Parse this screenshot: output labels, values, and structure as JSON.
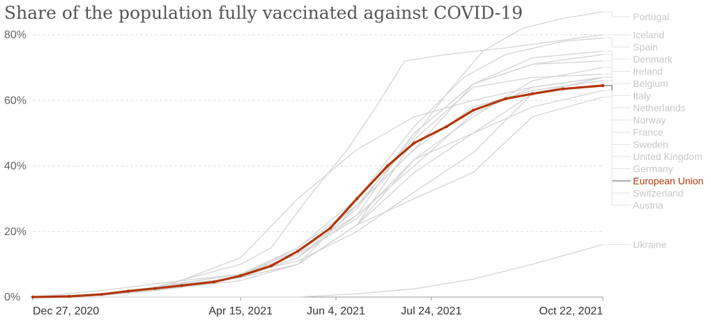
{
  "chart_data": {
    "type": "line",
    "title": "Share of the population fully vaccinated against COVID-19",
    "xlabel": "",
    "ylabel": "",
    "y_unit": "%",
    "ylim": [
      0,
      80
    ],
    "y_ticks": [
      {
        "value": 0,
        "label": "0%"
      },
      {
        "value": 20,
        "label": "20%"
      },
      {
        "value": 40,
        "label": "40%"
      },
      {
        "value": 60,
        "label": "60%"
      },
      {
        "value": 80,
        "label": "80%"
      }
    ],
    "x_range": [
      "2020-12-27",
      "2021-10-22"
    ],
    "x_ticks": [
      {
        "value": "2020-12-27",
        "label": "Dec 27, 2020"
      },
      {
        "value": "2021-04-15",
        "label": "Apr 15, 2021"
      },
      {
        "value": "2021-06-04",
        "label": "Jun 4, 2021"
      },
      {
        "value": "2021-07-24",
        "label": "Jul 24, 2021"
      },
      {
        "value": "2021-10-22",
        "label": "Oct 22, 2021"
      }
    ],
    "grid": true,
    "legend_placement": "right, labels at line ends",
    "colors": {
      "highlight": "#b13507",
      "background_series": "#d3d3d3",
      "gridline": "#dddddd"
    },
    "highlighted_series": "European Union",
    "series": [
      {
        "name": "Portugal",
        "points": [
          [
            "2020-12-27",
            0
          ],
          [
            "2021-02-01",
            0.5
          ],
          [
            "2021-03-01",
            2
          ],
          [
            "2021-04-15",
            6
          ],
          [
            "2021-05-15",
            15
          ],
          [
            "2021-06-15",
            28
          ],
          [
            "2021-07-10",
            45
          ],
          [
            "2021-08-01",
            62
          ],
          [
            "2021-08-20",
            75
          ],
          [
            "2021-09-10",
            82
          ],
          [
            "2021-10-01",
            85
          ],
          [
            "2021-10-22",
            87
          ]
        ]
      },
      {
        "name": "Iceland",
        "points": [
          [
            "2020-12-27",
            0
          ],
          [
            "2021-02-01",
            1
          ],
          [
            "2021-03-01",
            3
          ],
          [
            "2021-04-15",
            10
          ],
          [
            "2021-05-01",
            15
          ],
          [
            "2021-05-20",
            30
          ],
          [
            "2021-06-10",
            45
          ],
          [
            "2021-06-25",
            58
          ],
          [
            "2021-07-10",
            72
          ],
          [
            "2021-08-01",
            74
          ],
          [
            "2021-09-01",
            76
          ],
          [
            "2021-10-22",
            80
          ]
        ]
      },
      {
        "name": "Spain",
        "points": [
          [
            "2020-12-27",
            0
          ],
          [
            "2021-02-01",
            1
          ],
          [
            "2021-03-01",
            3
          ],
          [
            "2021-04-15",
            7
          ],
          [
            "2021-05-15",
            15
          ],
          [
            "2021-06-15",
            30
          ],
          [
            "2021-07-15",
            52
          ],
          [
            "2021-08-10",
            67
          ],
          [
            "2021-09-01",
            74
          ],
          [
            "2021-10-01",
            78
          ],
          [
            "2021-10-22",
            79
          ]
        ]
      },
      {
        "name": "Denmark",
        "points": [
          [
            "2020-12-27",
            0
          ],
          [
            "2021-02-01",
            1
          ],
          [
            "2021-03-01",
            3
          ],
          [
            "2021-04-15",
            7
          ],
          [
            "2021-05-15",
            13
          ],
          [
            "2021-06-15",
            28
          ],
          [
            "2021-07-15",
            45
          ],
          [
            "2021-08-15",
            65
          ],
          [
            "2021-09-15",
            73
          ],
          [
            "2021-10-22",
            75
          ]
        ]
      },
      {
        "name": "Ireland",
        "points": [
          [
            "2020-12-27",
            0
          ],
          [
            "2021-02-01",
            1
          ],
          [
            "2021-03-01",
            3
          ],
          [
            "2021-04-15",
            6
          ],
          [
            "2021-05-15",
            12
          ],
          [
            "2021-06-15",
            27
          ],
          [
            "2021-07-15",
            50
          ],
          [
            "2021-08-15",
            65
          ],
          [
            "2021-09-15",
            71
          ],
          [
            "2021-10-22",
            74
          ]
        ]
      },
      {
        "name": "Belgium",
        "points": [
          [
            "2020-12-27",
            0
          ],
          [
            "2021-02-01",
            0.5
          ],
          [
            "2021-03-01",
            2
          ],
          [
            "2021-04-15",
            6
          ],
          [
            "2021-05-15",
            12
          ],
          [
            "2021-06-15",
            25
          ],
          [
            "2021-07-15",
            50
          ],
          [
            "2021-08-15",
            65
          ],
          [
            "2021-09-15",
            71
          ],
          [
            "2021-10-22",
            72
          ]
        ]
      },
      {
        "name": "Italy",
        "points": [
          [
            "2020-12-27",
            0
          ],
          [
            "2021-02-01",
            2
          ],
          [
            "2021-03-01",
            4
          ],
          [
            "2021-04-15",
            7
          ],
          [
            "2021-05-15",
            13
          ],
          [
            "2021-06-15",
            24
          ],
          [
            "2021-07-15",
            42
          ],
          [
            "2021-08-15",
            55
          ],
          [
            "2021-09-15",
            66
          ],
          [
            "2021-10-22",
            70
          ]
        ]
      },
      {
        "name": "Netherlands",
        "points": [
          [
            "2020-12-27",
            0
          ],
          [
            "2021-02-01",
            0.5
          ],
          [
            "2021-03-01",
            2
          ],
          [
            "2021-04-15",
            5
          ],
          [
            "2021-05-15",
            10
          ],
          [
            "2021-06-15",
            22
          ],
          [
            "2021-07-15",
            48
          ],
          [
            "2021-08-15",
            64
          ],
          [
            "2021-09-15",
            67
          ],
          [
            "2021-10-22",
            68
          ]
        ]
      },
      {
        "name": "Norway",
        "points": [
          [
            "2020-12-27",
            0
          ],
          [
            "2021-02-01",
            1
          ],
          [
            "2021-03-01",
            3
          ],
          [
            "2021-04-15",
            7
          ],
          [
            "2021-05-15",
            11
          ],
          [
            "2021-06-15",
            20
          ],
          [
            "2021-07-15",
            32
          ],
          [
            "2021-08-15",
            44
          ],
          [
            "2021-09-15",
            62
          ],
          [
            "2021-10-22",
            67
          ]
        ]
      },
      {
        "name": "France",
        "points": [
          [
            "2020-12-27",
            0
          ],
          [
            "2021-02-01",
            1
          ],
          [
            "2021-03-01",
            3
          ],
          [
            "2021-04-15",
            7
          ],
          [
            "2021-05-15",
            14
          ],
          [
            "2021-06-15",
            25
          ],
          [
            "2021-07-15",
            40
          ],
          [
            "2021-08-15",
            56
          ],
          [
            "2021-09-15",
            64
          ],
          [
            "2021-10-22",
            67
          ]
        ]
      },
      {
        "name": "Sweden",
        "points": [
          [
            "2020-12-27",
            0
          ],
          [
            "2021-02-01",
            1
          ],
          [
            "2021-03-01",
            2
          ],
          [
            "2021-04-15",
            6
          ],
          [
            "2021-05-15",
            10
          ],
          [
            "2021-06-15",
            22
          ],
          [
            "2021-07-15",
            38
          ],
          [
            "2021-08-15",
            50
          ],
          [
            "2021-09-15",
            62
          ],
          [
            "2021-10-22",
            67
          ]
        ]
      },
      {
        "name": "United Kingdom",
        "points": [
          [
            "2020-12-27",
            0
          ],
          [
            "2021-02-01",
            1
          ],
          [
            "2021-03-01",
            2
          ],
          [
            "2021-04-15",
            12
          ],
          [
            "2021-05-15",
            30
          ],
          [
            "2021-06-15",
            45
          ],
          [
            "2021-07-15",
            55
          ],
          [
            "2021-08-15",
            60
          ],
          [
            "2021-09-15",
            64
          ],
          [
            "2021-10-22",
            67
          ]
        ]
      },
      {
        "name": "Germany",
        "points": [
          [
            "2020-12-27",
            0
          ],
          [
            "2021-02-01",
            1
          ],
          [
            "2021-03-01",
            3
          ],
          [
            "2021-04-15",
            6
          ],
          [
            "2021-05-15",
            10
          ],
          [
            "2021-06-15",
            28
          ],
          [
            "2021-07-15",
            45
          ],
          [
            "2021-08-15",
            58
          ],
          [
            "2021-09-15",
            63
          ],
          [
            "2021-10-22",
            66
          ]
        ]
      },
      {
        "name": "European Union",
        "points": [
          [
            "2020-12-27",
            0
          ],
          [
            "2021-01-15",
            0.2
          ],
          [
            "2021-02-01",
            0.8
          ],
          [
            "2021-02-15",
            1.8
          ],
          [
            "2021-03-01",
            2.6
          ],
          [
            "2021-03-15",
            3.5
          ],
          [
            "2021-04-01",
            4.6
          ],
          [
            "2021-04-15",
            6.5
          ],
          [
            "2021-05-01",
            9.5
          ],
          [
            "2021-05-15",
            14
          ],
          [
            "2021-06-01",
            21
          ],
          [
            "2021-06-15",
            30
          ],
          [
            "2021-07-01",
            40
          ],
          [
            "2021-07-15",
            47
          ],
          [
            "2021-08-01",
            52
          ],
          [
            "2021-08-15",
            57
          ],
          [
            "2021-09-01",
            60.5
          ],
          [
            "2021-09-15",
            62
          ],
          [
            "2021-10-01",
            63.5
          ],
          [
            "2021-10-22",
            64.5
          ]
        ]
      },
      {
        "name": "Switzerland",
        "points": [
          [
            "2020-12-27",
            0
          ],
          [
            "2021-02-01",
            1
          ],
          [
            "2021-03-01",
            2
          ],
          [
            "2021-04-15",
            6
          ],
          [
            "2021-05-15",
            10
          ],
          [
            "2021-06-15",
            22
          ],
          [
            "2021-07-15",
            42
          ],
          [
            "2021-08-15",
            50
          ],
          [
            "2021-09-15",
            58
          ],
          [
            "2021-10-22",
            63
          ]
        ]
      },
      {
        "name": "Austria",
        "points": [
          [
            "2020-12-27",
            0
          ],
          [
            "2021-02-01",
            1
          ],
          [
            "2021-03-01",
            3
          ],
          [
            "2021-04-15",
            6
          ],
          [
            "2021-05-15",
            10
          ],
          [
            "2021-06-15",
            22
          ],
          [
            "2021-07-15",
            30
          ],
          [
            "2021-08-15",
            38
          ],
          [
            "2021-09-15",
            55
          ],
          [
            "2021-10-22",
            61
          ]
        ]
      },
      {
        "name": "Ukraine",
        "points": [
          [
            "2020-12-27",
            0
          ],
          [
            "2021-05-15",
            0
          ],
          [
            "2021-06-15",
            1
          ],
          [
            "2021-07-15",
            2.5
          ],
          [
            "2021-08-15",
            5.5
          ],
          [
            "2021-09-15",
            10
          ],
          [
            "2021-10-22",
            16
          ]
        ]
      }
    ]
  }
}
